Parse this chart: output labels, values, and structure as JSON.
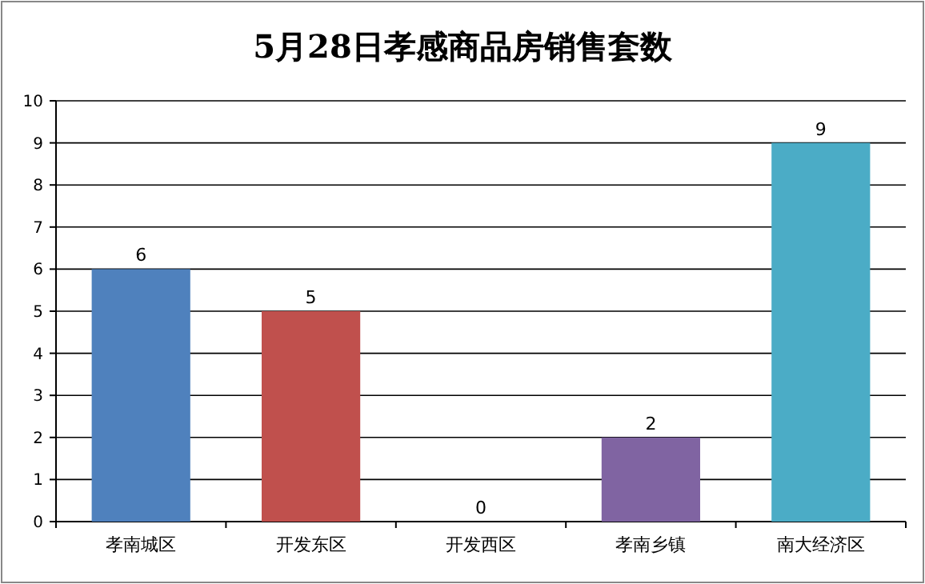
{
  "chart_data": {
    "type": "bar",
    "title": "5月28日孝感商品房销售套数",
    "categories": [
      "孝南城区",
      "开发东区",
      "开发西区",
      "孝南乡镇",
      "南大经济区"
    ],
    "values": [
      6,
      5,
      0,
      2,
      9
    ],
    "colors": [
      "#4f81bd",
      "#c0504d",
      "#9bbb59",
      "#8064a2",
      "#4bacc6"
    ],
    "ylim": [
      0,
      10
    ],
    "yticks": [
      0,
      1,
      2,
      3,
      4,
      5,
      6,
      7,
      8,
      9,
      10
    ],
    "grid": "y",
    "data_labels": true
  }
}
